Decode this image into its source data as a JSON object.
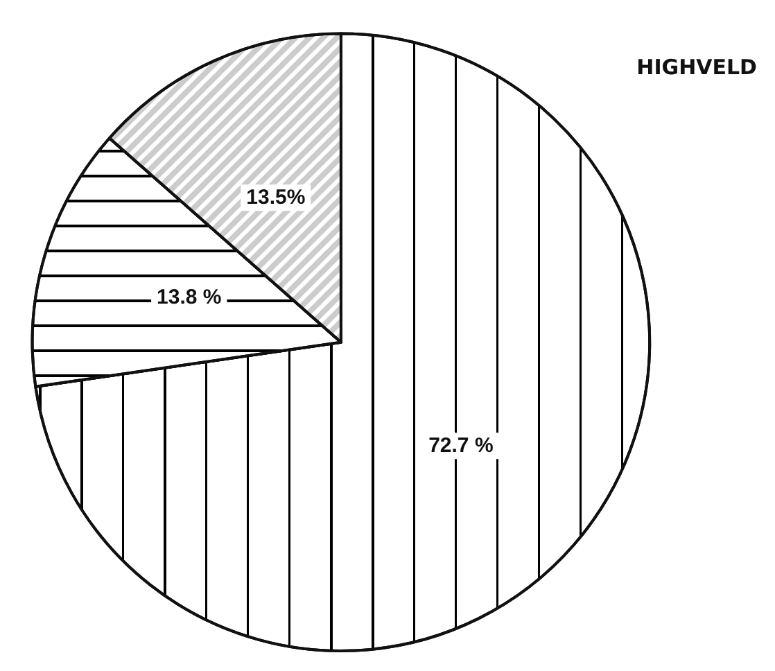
{
  "chart_data": {
    "type": "pie",
    "title": "HIGHVELD",
    "categories": [
      null,
      null,
      null
    ],
    "values": [
      72.7,
      13.8,
      13.5
    ],
    "colors": [
      "#ffffff",
      "#ffffff",
      "#ffffff"
    ],
    "value_labels": [
      "72.7 %",
      "13.8 %",
      "13.5%"
    ]
  }
}
